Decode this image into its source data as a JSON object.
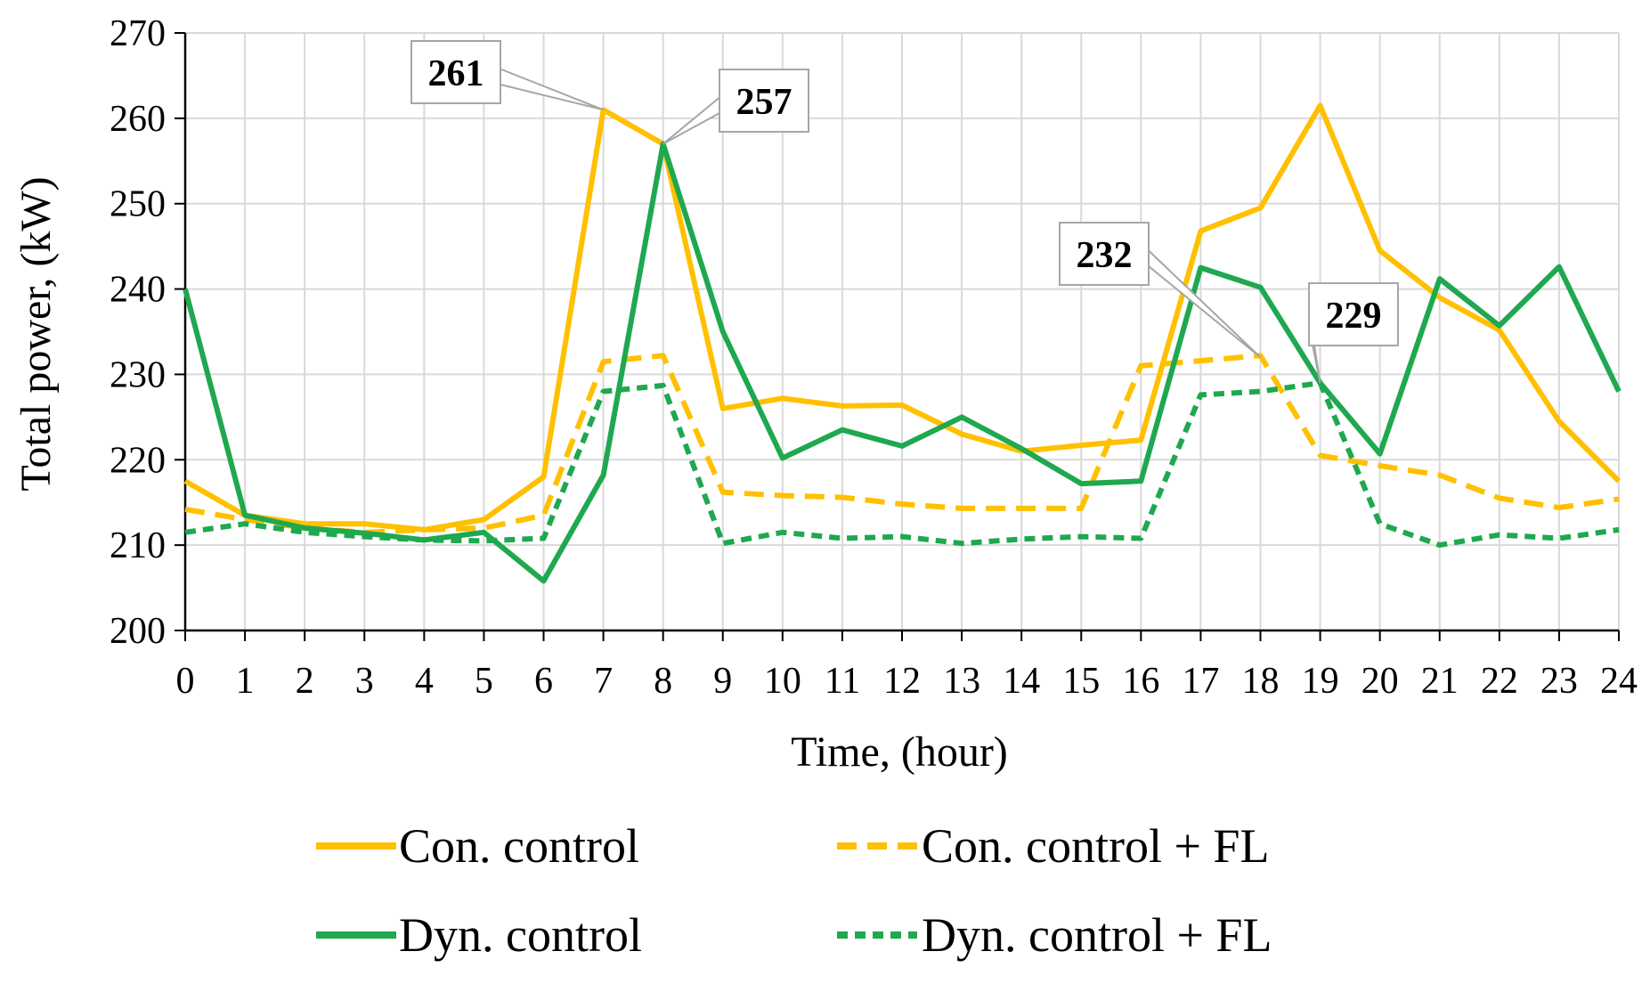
{
  "chart_data": {
    "type": "line",
    "title": "",
    "xlabel": "Time, (hour)",
    "ylabel": "Total power, (kW)",
    "xlim": [
      0,
      24
    ],
    "ylim": [
      200,
      270
    ],
    "yticks": [
      200,
      210,
      220,
      230,
      240,
      250,
      260,
      270
    ],
    "x": [
      0,
      1,
      2,
      3,
      4,
      5,
      6,
      7,
      8,
      9,
      10,
      11,
      12,
      13,
      14,
      15,
      16,
      17,
      18,
      19,
      20,
      21,
      22,
      23,
      24
    ],
    "grid": true,
    "legend_position": "bottom",
    "series": [
      {
        "name": "Con. control",
        "color": "#FFC000",
        "style": "solid",
        "values": [
          217.5,
          213.5,
          212.5,
          212.5,
          211.8,
          213,
          218,
          261,
          257,
          226,
          227.2,
          226.3,
          226.4,
          223,
          221,
          221.7,
          222.3,
          246.8,
          249.5,
          261.5,
          244.5,
          239,
          235.2,
          224.5,
          217.5
        ]
      },
      {
        "name": "Con. control + FL",
        "color": "#FFC000",
        "style": "dashed",
        "values": [
          214.2,
          213,
          212,
          211.5,
          211.8,
          212,
          213.5,
          231.5,
          232.2,
          216.2,
          215.8,
          215.6,
          214.8,
          214.3,
          214.3,
          214.3,
          231,
          231.6,
          232.2,
          220.5,
          219.3,
          218.2,
          215.5,
          214.4,
          215.4
        ]
      },
      {
        "name": "Dyn. control",
        "color": "#1FA84F",
        "style": "solid",
        "values": [
          240,
          213.5,
          212,
          211.4,
          210.6,
          211.5,
          205.8,
          218.2,
          257,
          235,
          220.2,
          223.5,
          221.6,
          225,
          221.3,
          217.2,
          217.5,
          242.5,
          240.2,
          229,
          220.7,
          241.2,
          235.7,
          242.6,
          228
        ]
      },
      {
        "name": "Dyn. control + FL",
        "color": "#1FA84F",
        "style": "dotted",
        "values": [
          211.5,
          212.5,
          211.5,
          211,
          210.6,
          210.5,
          210.8,
          228,
          228.7,
          210.2,
          211.5,
          210.8,
          211,
          210.2,
          210.7,
          211,
          210.8,
          227.6,
          228,
          229,
          212.5,
          210,
          211.2,
          210.8,
          211.8
        ]
      }
    ],
    "annotations": [
      {
        "label": "261",
        "x": 7,
        "y": 261
      },
      {
        "label": "257",
        "x": 8,
        "y": 257
      },
      {
        "label": "232",
        "x": 18,
        "y": 232
      },
      {
        "label": "229",
        "x": 19,
        "y": 229
      }
    ]
  }
}
